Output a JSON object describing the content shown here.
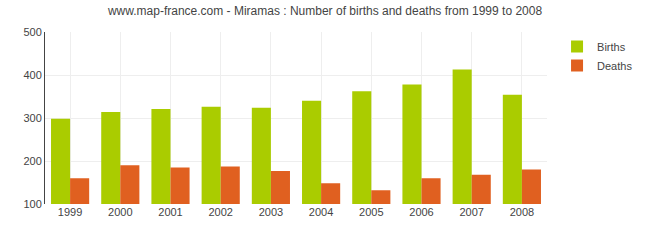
{
  "chart_data": {
    "type": "bar",
    "title": "www.map-france.com - Miramas : Number of births and deaths from 1999 to 2008",
    "categories": [
      "1999",
      "2000",
      "2001",
      "2002",
      "2003",
      "2004",
      "2005",
      "2006",
      "2007",
      "2008"
    ],
    "series": [
      {
        "name": "Births",
        "color": "#aacc00",
        "values": [
          298,
          314,
          321,
          326,
          324,
          340,
          362,
          378,
          413,
          354
        ]
      },
      {
        "name": "Deaths",
        "color": "#e06020",
        "values": [
          160,
          190,
          185,
          187,
          177,
          148,
          132,
          160,
          168,
          180
        ]
      }
    ],
    "ylim": [
      100,
      500
    ],
    "yticks": [
      100,
      200,
      300,
      400,
      500
    ],
    "grid": true,
    "legend": "upper right"
  }
}
